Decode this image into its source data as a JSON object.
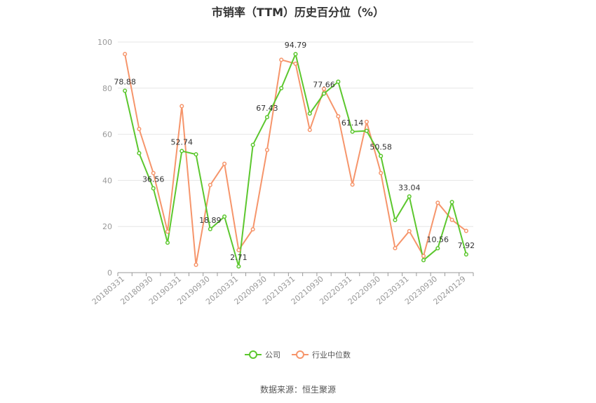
{
  "chart_data": {
    "type": "line",
    "title": "市销率（TTM）历史百分位（%）",
    "xlabel": "",
    "ylabel": "",
    "ylim": [
      0,
      100
    ],
    "yticks": [
      0,
      20,
      40,
      60,
      80,
      100
    ],
    "grid": true,
    "legend_position": "bottom",
    "x": [
      "20180331",
      "20180630",
      "20180930",
      "20181231",
      "20190331",
      "20190630",
      "20190930",
      "20191231",
      "20200331",
      "20200630",
      "20200930",
      "20201231",
      "20210331",
      "20210630",
      "20210930",
      "20211231",
      "20220331",
      "20220630",
      "20220930",
      "20221231",
      "20230331",
      "20230630",
      "20230930",
      "20231231",
      "20240129"
    ],
    "xtick_labels": [
      "20180331",
      "20180930",
      "20190331",
      "20190930",
      "20200331",
      "20200930",
      "20210331",
      "20210930",
      "20220331",
      "20220930",
      "20230331",
      "20230930",
      "20240129"
    ],
    "series": [
      {
        "name": "公司",
        "color": "#5cc72e",
        "values": [
          78.88,
          51.8,
          36.56,
          13.0,
          52.74,
          51.3,
          18.89,
          24.3,
          2.71,
          55.4,
          67.43,
          80.0,
          94.79,
          69.0,
          77.66,
          82.8,
          61.14,
          61.5,
          50.58,
          22.8,
          33.04,
          5.4,
          10.56,
          30.6,
          7.92
        ],
        "labels": {
          "0": "78.88",
          "2": "36.56",
          "4": "52.74",
          "6": "18.89",
          "8": "2.71",
          "10": "67.43",
          "12": "94.79",
          "14": "77.66",
          "16": "61.14",
          "18": "50.58",
          "20": "33.04",
          "22": "10.56",
          "24": "7.92"
        }
      },
      {
        "name": "行业中位数",
        "color": "#f6956b",
        "values": [
          94.8,
          62.3,
          43.2,
          17.8,
          72.2,
          3.4,
          38.0,
          47.2,
          9.8,
          18.8,
          53.2,
          92.3,
          90.6,
          61.9,
          79.7,
          67.8,
          38.2,
          65.4,
          43.2,
          10.6,
          18.0,
          7.2,
          30.3,
          22.9,
          18.1
        ]
      }
    ]
  },
  "footer": {
    "source": "数据来源：恒生聚源"
  }
}
